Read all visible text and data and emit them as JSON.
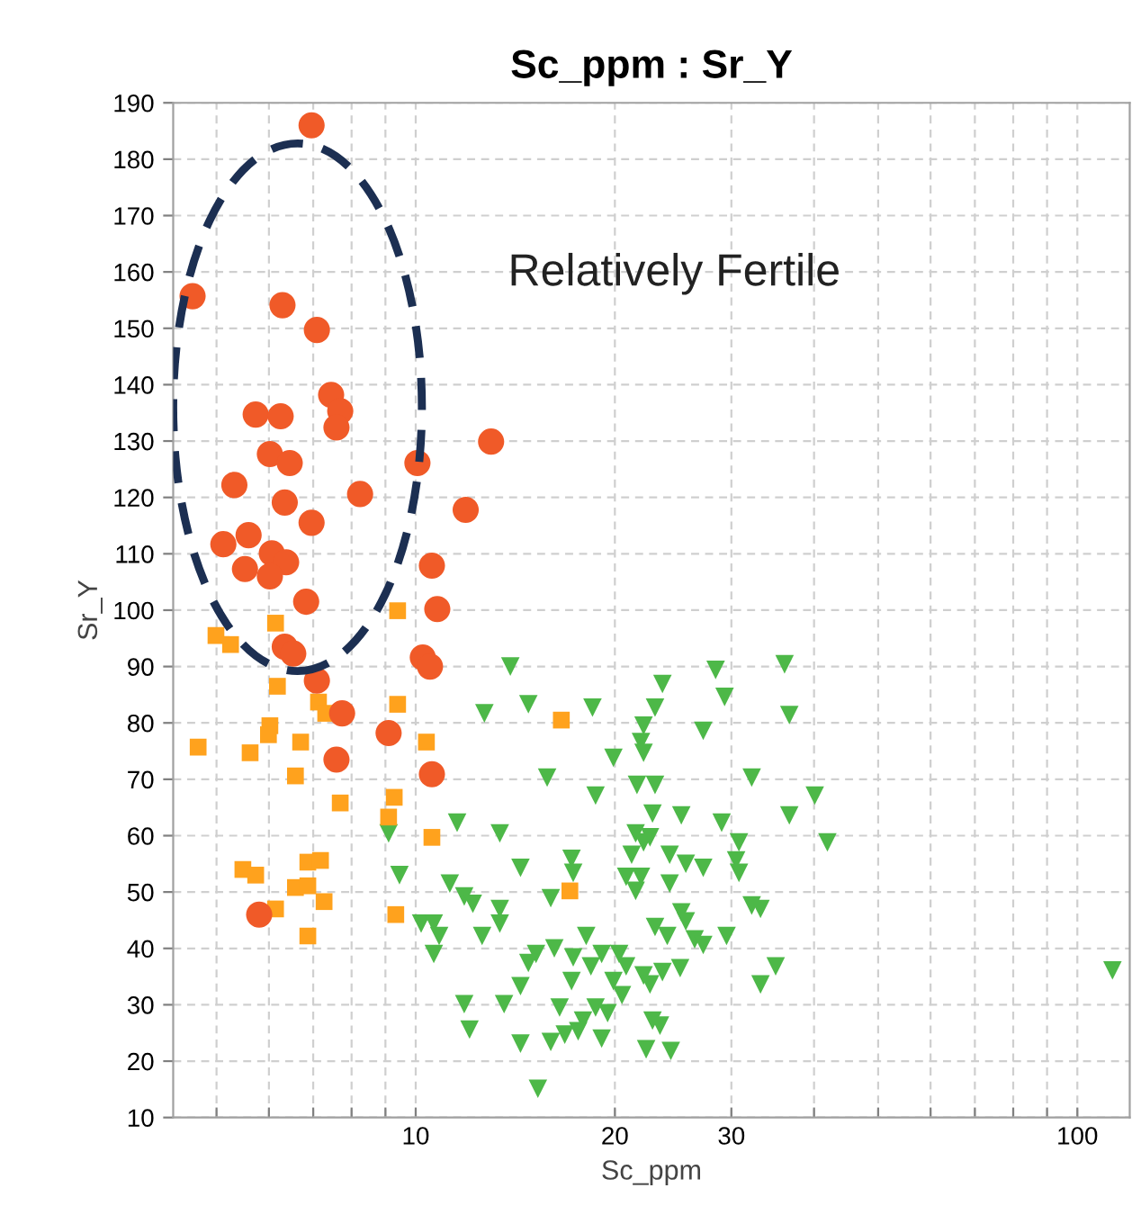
{
  "chart_data": {
    "type": "scatter",
    "title": "Sc_ppm : Sr_Y",
    "xlabel": "Sc_ppm",
    "ylabel": "Sr_Y",
    "log": "x",
    "xlim": [
      4.3,
      120
    ],
    "ylim": [
      10,
      190
    ],
    "xticks": [
      {
        "value": 5,
        "label": null
      },
      {
        "value": 6,
        "label": null
      },
      {
        "value": 7,
        "label": null
      },
      {
        "value": 8,
        "label": null
      },
      {
        "value": 9,
        "label": null
      },
      10,
      20,
      30,
      {
        "value": 40,
        "label": null
      },
      {
        "value": 50,
        "label": null
      },
      {
        "value": 60,
        "label": null
      },
      {
        "value": 70,
        "label": null
      },
      {
        "value": 80,
        "label": null
      },
      {
        "value": 90,
        "label": null
      },
      100
    ],
    "yticks": [
      10,
      20,
      30,
      40,
      50,
      60,
      70,
      80,
      90,
      100,
      110,
      120,
      130,
      140,
      150,
      160,
      170,
      180,
      190
    ],
    "grid": true,
    "legend": false,
    "annotations": [
      "Relatively Fertile"
    ],
    "series": [
      {
        "color": "#4db848",
        "marker": "triangle",
        "x": [
          13.9,
          28.4,
          36.1,
          23.6,
          29.3,
          14.8,
          18.5,
          23.0,
          12.7,
          36.7,
          27.2,
          22.1,
          21.9,
          22.1,
          19.9,
          15.8,
          21.6,
          23.0,
          32.2,
          18.7,
          40.1,
          11.55,
          13.4,
          22.8,
          25.2,
          29.0,
          36.7,
          9.1,
          21.5,
          22.6,
          22.1,
          30.8,
          21.2,
          24.2,
          17.2,
          9.45,
          14.4,
          25.6,
          27.2,
          30.5,
          30.8,
          20.8,
          21.9,
          17.3,
          24.2,
          21.5,
          11.26,
          11.84,
          12.2,
          16.0,
          13.4,
          13.4,
          25.2,
          32.2,
          33.2,
          10.19,
          10.65,
          10.85,
          10.65,
          12.6,
          23.0,
          24.0,
          25.6,
          26.4,
          29.5,
          27.2,
          15.2,
          16.2,
          18.1,
          19.1,
          20.3,
          20.8,
          14.8,
          17.3,
          18.4,
          22.1,
          23.6,
          25.1,
          14.4,
          17.2,
          19.9,
          22.6,
          35.0,
          33.2,
          11.84,
          13.6,
          16.5,
          18.7,
          19.5,
          20.5,
          17.9,
          22.8,
          23.4,
          12.06,
          14.4,
          16.0,
          16.8,
          17.6,
          19.1,
          22.3,
          24.3,
          15.3,
          41.9,
          113
        ],
        "values": [
          90,
          89.4,
          90.4,
          86.9,
          84.6,
          83.3,
          82.7,
          82.7,
          81.7,
          81.4,
          78.6,
          79.5,
          76.6,
          74.7,
          73.8,
          70.3,
          69.0,
          69.0,
          70.3,
          67.1,
          67.1,
          62.3,
          60.4,
          63.9,
          63.6,
          62.3,
          63.6,
          60.4,
          60.4,
          59.7,
          58.8,
          58.8,
          56.6,
          56.6,
          55.9,
          53.0,
          54.3,
          55.0,
          54.3,
          55.6,
          53.4,
          52.7,
          52.7,
          53.4,
          51.5,
          50.2,
          51.5,
          49.2,
          47.9,
          48.9,
          47.0,
          44.4,
          46.4,
          47.6,
          47.0,
          44.4,
          44.4,
          42.2,
          39.0,
          42.2,
          43.8,
          42.2,
          44.8,
          41.6,
          42.2,
          40.6,
          39.0,
          40.0,
          42.2,
          39.0,
          39.0,
          36.8,
          37.4,
          38.4,
          36.8,
          35.2,
          35.8,
          36.5,
          33.3,
          34.2,
          34.2,
          33.6,
          36.8,
          33.6,
          30.1,
          30.1,
          29.5,
          29.5,
          28.5,
          31.7,
          27.2,
          27.2,
          26.3,
          25.6,
          23.1,
          23.4,
          24.7,
          25.3,
          24.0,
          22.1,
          21.8,
          15.1,
          58.8,
          36.1
        ]
      },
      {
        "color": "#ffa21d",
        "marker": "square",
        "x": [
          9.39,
          6.14,
          4.99,
          5.25,
          6.18,
          7.13,
          7.31,
          9.39,
          6.02,
          5.99,
          4.69,
          5.62,
          6.7,
          10.38,
          6.58,
          7.69,
          9.28,
          9.1,
          10.58,
          5.48,
          5.73,
          6.87,
          7.18,
          6.58,
          6.87,
          7.27,
          6.14,
          9.33,
          6.87,
          16.6,
          17.1
        ],
        "values": [
          99.9,
          97.7,
          95.5,
          93.9,
          86.5,
          83.7,
          81.7,
          83.3,
          79.5,
          77.9,
          75.7,
          74.7,
          76.6,
          76.6,
          70.6,
          65.8,
          66.8,
          63.3,
          59.7,
          54.0,
          53.0,
          55.3,
          55.6,
          50.8,
          51.1,
          48.3,
          47.0,
          46.0,
          42.2,
          80.5,
          50.2
        ]
      },
      {
        "color": "#f05a28",
        "marker": "circle",
        "x": [
          6.96,
          4.6,
          6.29,
          7.09,
          7.45,
          7.69,
          7.59,
          5.73,
          6.25,
          6.02,
          6.45,
          13.0,
          10.06,
          5.32,
          6.34,
          8.24,
          6.96,
          11.9,
          5.12,
          5.59,
          6.06,
          6.37,
          5.52,
          6.02,
          10.58,
          6.83,
          10.78,
          6.34,
          6.53,
          10.25,
          10.51,
          7.09,
          7.74,
          9.1,
          7.59,
          10.58,
          5.8
        ],
        "values": [
          186.0,
          155.7,
          154.1,
          149.7,
          138.2,
          135.3,
          132.4,
          134.7,
          134.4,
          127.7,
          126.1,
          129.9,
          126.1,
          122.2,
          119.1,
          120.6,
          115.5,
          117.8,
          111.7,
          113.3,
          110.1,
          108.5,
          107.3,
          106.0,
          107.9,
          101.5,
          100.2,
          93.5,
          92.3,
          91.6,
          90.0,
          87.5,
          81.7,
          78.2,
          73.5,
          70.9,
          46.0
        ]
      }
    ]
  }
}
